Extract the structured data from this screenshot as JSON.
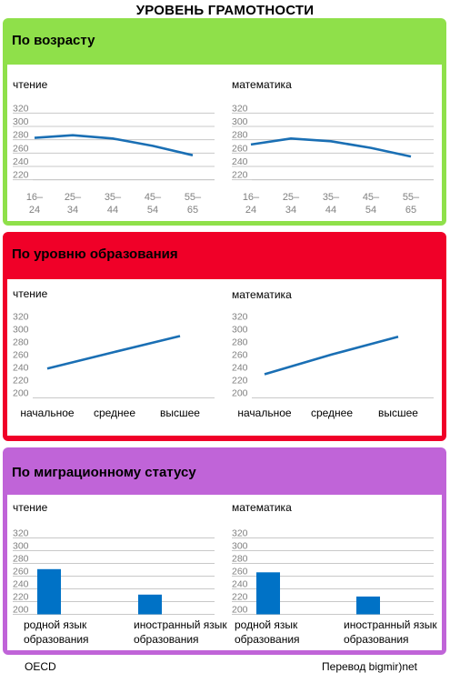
{
  "title": "УРОВЕНЬ ГРАМОТНОСТИ",
  "footer": {
    "source": "OECD",
    "credit": "Перевод bigmir)net"
  },
  "colors": {
    "series": "#1a6fb4",
    "bar": "#0072c6",
    "panel_age": "#8fe04a",
    "panel_education": "#f00028",
    "panel_migration": "#c064d8",
    "grid": "#c8c8c8",
    "tick": "#808080"
  },
  "panels": [
    {
      "title": "По возрасту"
    },
    {
      "title": "По уровню образования"
    },
    {
      "title": "По миграционному статусу"
    }
  ],
  "chart_data": [
    {
      "panel": 0,
      "type": "line",
      "title": "чтение",
      "categories": [
        "16–\n24",
        "25–\n34",
        "35–\n44",
        "45–\n54",
        "55–\n65"
      ],
      "values": [
        276,
        280,
        275,
        264,
        250
      ],
      "yticks": [
        220,
        240,
        260,
        280,
        300,
        320
      ],
      "ylim": [
        210,
        330
      ],
      "grid": true
    },
    {
      "panel": 0,
      "type": "line",
      "title": "математика",
      "categories": [
        "16–\n24",
        "25–\n34",
        "35–\n44",
        "45–\n54",
        "55–\n65"
      ],
      "values": [
        266,
        275,
        271,
        261,
        248
      ],
      "yticks": [
        220,
        240,
        260,
        280,
        300,
        320
      ],
      "ylim": [
        210,
        330
      ],
      "grid": true
    },
    {
      "panel": 1,
      "type": "line",
      "title": "чтение",
      "categories": [
        "начальное",
        "среднее",
        "высшее"
      ],
      "values": [
        239,
        265,
        290
      ],
      "yticks": [
        200,
        220,
        240,
        260,
        280,
        300,
        320
      ],
      "ylim": [
        195,
        325
      ],
      "grid": false
    },
    {
      "panel": 1,
      "type": "line",
      "title": "математика",
      "categories": [
        "начальное",
        "среднее",
        "высшее"
      ],
      "values": [
        230,
        261,
        289
      ],
      "yticks": [
        200,
        220,
        240,
        260,
        280,
        300,
        320
      ],
      "ylim": [
        195,
        325
      ],
      "grid": false
    },
    {
      "panel": 2,
      "type": "bar",
      "title": "чтение",
      "categories": [
        "родной язык\nобразования",
        "иностранный язык\nобразования"
      ],
      "values": [
        271,
        231
      ],
      "yticks": [
        200,
        220,
        240,
        260,
        280,
        300,
        320
      ],
      "ylim": [
        195,
        325
      ],
      "grid": true
    },
    {
      "panel": 2,
      "type": "bar",
      "title": "математика",
      "categories": [
        "родной язык\nобразования",
        "иностранный язык\nобразования"
      ],
      "values": [
        266,
        228
      ],
      "yticks": [
        200,
        220,
        240,
        260,
        280,
        300,
        320
      ],
      "ylim": [
        195,
        325
      ],
      "grid": true
    }
  ]
}
